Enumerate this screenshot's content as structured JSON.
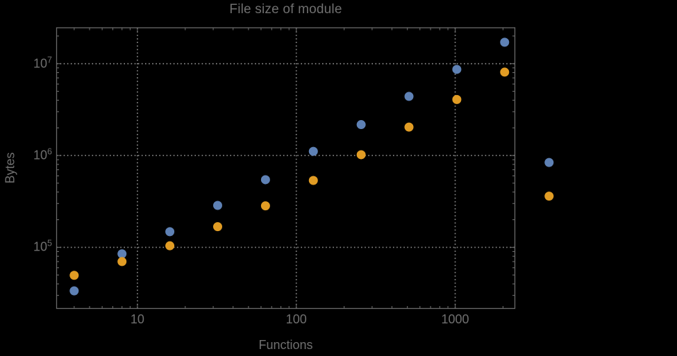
{
  "theme": {
    "background": "#000000",
    "frame_color": "#6a6a6a",
    "grid_color": "#8c8c8c",
    "text_color": "#6f6f6f"
  },
  "chart_data": {
    "type": "scatter",
    "title": "File size of module",
    "xlabel": "Functions",
    "ylabel": "Bytes",
    "x_scale": "log",
    "y_scale": "log",
    "xlim": [
      3.1,
      2375
    ],
    "ylim": [
      21600,
      24600000
    ],
    "grid": {
      "style": "dotted",
      "x_values": [
        10,
        100,
        1000
      ],
      "y_values": [
        100000,
        1000000,
        10000000
      ]
    },
    "x_ticks": {
      "major": [
        10,
        100,
        1000
      ],
      "major_labels": [
        "10",
        "100",
        "1000"
      ],
      "minor": [
        4,
        5,
        6,
        7,
        8,
        9,
        20,
        30,
        40,
        50,
        60,
        70,
        80,
        90,
        200,
        300,
        400,
        500,
        600,
        700,
        800,
        900,
        2000
      ]
    },
    "y_ticks": {
      "major": [
        100000,
        1000000,
        10000000
      ],
      "major_labels": [
        {
          "mantissa": "10",
          "exp": "5"
        },
        {
          "mantissa": "10",
          "exp": "6"
        },
        {
          "mantissa": "10",
          "exp": "7"
        }
      ],
      "minor": [
        30000,
        40000,
        50000,
        60000,
        70000,
        80000,
        90000,
        200000,
        300000,
        400000,
        500000,
        600000,
        700000,
        800000,
        900000,
        2000000,
        3000000,
        4000000,
        5000000,
        6000000,
        7000000,
        8000000,
        9000000,
        20000000
      ]
    },
    "marker_radius": 6.5,
    "legend": "none",
    "series": [
      {
        "name": "blue-series",
        "color": "#5E81B5",
        "marker": "circle",
        "x": [
          4,
          8,
          16,
          32,
          64,
          128,
          256,
          512,
          1024,
          2048,
          3900
        ],
        "y": [
          33600,
          85000,
          148000,
          286000,
          545000,
          1110000,
          2170000,
          4400000,
          8670000,
          17100000,
          840000
        ]
      },
      {
        "name": "orange-series",
        "color": "#E19C24",
        "marker": "circle",
        "x": [
          4,
          8,
          16,
          32,
          64,
          128,
          256,
          512,
          1024,
          2048,
          3900
        ],
        "y": [
          49600,
          70000,
          104000,
          168000,
          283000,
          535000,
          1020000,
          2040000,
          4070000,
          8090000,
          361000
        ]
      }
    ]
  }
}
